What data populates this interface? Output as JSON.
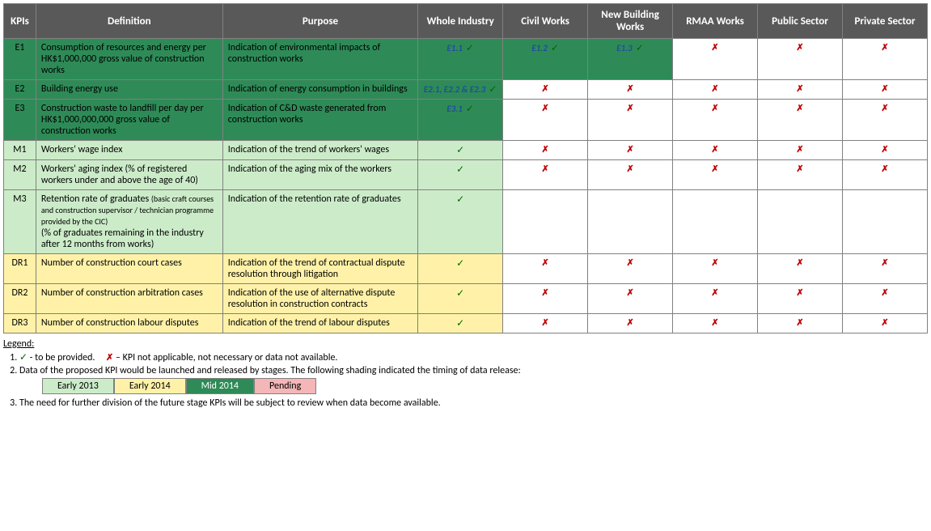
{
  "colors": {
    "header_bg": "#595959",
    "header_fg": "#ffffff",
    "border": "#808080",
    "tick": "#006400",
    "cross": "#c00000",
    "ref": "#1f4e9c",
    "shade_darkgreen": "#2e8b57",
    "shade_lightgreen": "#ccecc9",
    "shade_yellow": "#fff2a8",
    "shade_pink": "#f4b6b6"
  },
  "table": {
    "columns": [
      "KPIs",
      "Definition",
      "Purpose",
      "Whole Industry",
      "Civil Works",
      "New Building Works",
      "RMAA Works",
      "Public Sector",
      "Private Sector"
    ],
    "segment_keys": [
      "whole_industry",
      "civil_works",
      "new_building_works",
      "rmaa_works",
      "public_sector",
      "private_sector"
    ],
    "rows": [
      {
        "id": "E1",
        "shade": "darkgreen",
        "definition": "Consumption of resources and energy per HK$1,000,000 gross value of construction works",
        "purpose": "Indication of environmental impacts of construction works",
        "segments": {
          "whole_industry": {
            "status": "tick",
            "ref": "E1.1",
            "shade": "darkgreen"
          },
          "civil_works": {
            "status": "tick",
            "ref": "E1.2",
            "shade": "darkgreen"
          },
          "new_building_works": {
            "status": "tick",
            "ref": "E1.3",
            "shade": "darkgreen"
          },
          "rmaa_works": {
            "status": "cross"
          },
          "public_sector": {
            "status": "cross"
          },
          "private_sector": {
            "status": "cross"
          }
        }
      },
      {
        "id": "E2",
        "shade": "darkgreen",
        "definition": "Building energy use",
        "purpose": "Indication of energy consumption in buildings",
        "segments": {
          "whole_industry": {
            "status": "tick",
            "ref": "E2.1, E2.2 & E2.3",
            "shade": "darkgreen"
          },
          "civil_works": {
            "status": "cross"
          },
          "new_building_works": {
            "status": "cross"
          },
          "rmaa_works": {
            "status": "cross"
          },
          "public_sector": {
            "status": "cross"
          },
          "private_sector": {
            "status": "cross"
          }
        }
      },
      {
        "id": "E3",
        "shade": "darkgreen",
        "definition": "Construction waste to landfill per day per HK$1,000,000,000 gross value of construction works",
        "purpose": "Indication of C&D waste generated from construction works",
        "segments": {
          "whole_industry": {
            "status": "tick",
            "ref": "E3.1",
            "shade": "darkgreen"
          },
          "civil_works": {
            "status": "cross"
          },
          "new_building_works": {
            "status": "cross"
          },
          "rmaa_works": {
            "status": "cross"
          },
          "public_sector": {
            "status": "cross"
          },
          "private_sector": {
            "status": "cross"
          }
        }
      },
      {
        "id": "M1",
        "shade": "lightgreen",
        "definition": "Workers' wage index",
        "purpose": "Indication of the trend of workers' wages",
        "segments": {
          "whole_industry": {
            "status": "tick",
            "shade": "lightgreen"
          },
          "civil_works": {
            "status": "cross"
          },
          "new_building_works": {
            "status": "cross"
          },
          "rmaa_works": {
            "status": "cross"
          },
          "public_sector": {
            "status": "cross"
          },
          "private_sector": {
            "status": "cross"
          }
        }
      },
      {
        "id": "M2",
        "shade": "lightgreen",
        "definition": "Workers' aging index\n(% of registered workers under and above the age of 40)",
        "purpose": "Indication of the aging mix of the workers",
        "segments": {
          "whole_industry": {
            "status": "tick",
            "shade": "lightgreen"
          },
          "civil_works": {
            "status": "cross"
          },
          "new_building_works": {
            "status": "cross"
          },
          "rmaa_works": {
            "status": "cross"
          },
          "public_sector": {
            "status": "cross"
          },
          "private_sector": {
            "status": "cross"
          }
        }
      },
      {
        "id": "M3",
        "shade": "lightgreen",
        "definition_html": "Retention rate of graduates <span class=\"fine\">(basic craft courses and construction supervisor / technician programme provided by the CIC)</span><br>(% of graduates remaining in the industry after 12 months from works)",
        "purpose": "Indication of the retention rate of graduates",
        "segments": {
          "whole_industry": {
            "status": "tick",
            "shade": "lightgreen"
          },
          "civil_works": {
            "status": "blank"
          },
          "new_building_works": {
            "status": "blank"
          },
          "rmaa_works": {
            "status": "blank"
          },
          "public_sector": {
            "status": "blank"
          },
          "private_sector": {
            "status": "blank"
          }
        }
      },
      {
        "id": "DR1",
        "shade": "yellow",
        "definition": "Number of construction court cases",
        "purpose": "Indication of the trend of contractual dispute resolution through litigation",
        "segments": {
          "whole_industry": {
            "status": "tick",
            "shade": "yellow"
          },
          "civil_works": {
            "status": "cross"
          },
          "new_building_works": {
            "status": "cross"
          },
          "rmaa_works": {
            "status": "cross"
          },
          "public_sector": {
            "status": "cross"
          },
          "private_sector": {
            "status": "cross"
          }
        }
      },
      {
        "id": "DR2",
        "shade": "yellow",
        "definition": "Number of construction arbitration cases",
        "purpose": "Indication of the use of alternative dispute resolution in construction contracts",
        "segments": {
          "whole_industry": {
            "status": "tick",
            "shade": "yellow"
          },
          "civil_works": {
            "status": "cross"
          },
          "new_building_works": {
            "status": "cross"
          },
          "rmaa_works": {
            "status": "cross"
          },
          "public_sector": {
            "status": "cross"
          },
          "private_sector": {
            "status": "cross"
          }
        }
      },
      {
        "id": "DR3",
        "shade": "yellow",
        "definition": "Number of construction labour disputes",
        "purpose": "Indication of the trend of labour disputes",
        "segments": {
          "whole_industry": {
            "status": "tick",
            "shade": "yellow"
          },
          "civil_works": {
            "status": "cross"
          },
          "new_building_works": {
            "status": "cross"
          },
          "rmaa_works": {
            "status": "cross"
          },
          "public_sector": {
            "status": "cross"
          },
          "private_sector": {
            "status": "cross"
          }
        }
      }
    ]
  },
  "legend": {
    "title": "Legend:",
    "item1_tick_text": "- to be provided.",
    "item1_cross_text": "– KPI not applicable, not necessary or data not available.",
    "item2": "Data of the proposed KPI would be launched and released by stages. The following shading indicated the timing of data release:",
    "swatches": [
      {
        "label": "Early 2013",
        "shade": "lightgreen"
      },
      {
        "label": "Early 2014",
        "shade": "yellow"
      },
      {
        "label": "Mid 2014",
        "shade": "darkgreen",
        "fg": "#ffffff"
      },
      {
        "label": "Pending",
        "shade": "pink"
      }
    ],
    "item3": "The need for further division of the future stage KPIs will be subject to review when data become available."
  },
  "glyphs": {
    "tick": "✓",
    "cross": "✗"
  }
}
